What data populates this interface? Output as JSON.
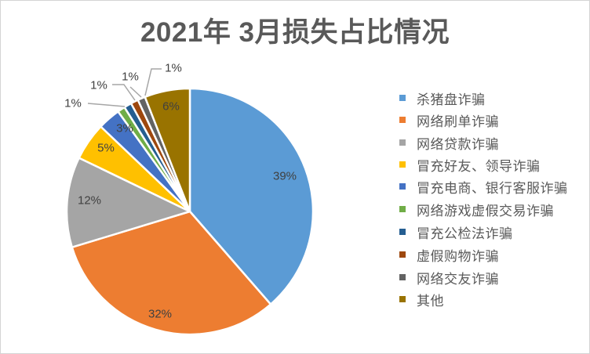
{
  "chart_data": {
    "type": "pie",
    "title": "2021年 3月损失占比情况",
    "categories": [
      "杀猪盘诈骗",
      "网络刷单诈骗",
      "网络贷款诈骗",
      "冒充好友、领导诈骗",
      "冒充电商、银行客服诈骗",
      "网络游戏虚假交易诈骗",
      "冒充公检法诈骗",
      "虚假购物诈骗",
      "网络交友诈骗",
      "其他"
    ],
    "values": [
      39,
      32,
      12,
      5,
      3,
      1,
      1,
      1,
      1,
      6
    ],
    "labels": [
      "39%",
      "32%",
      "12%",
      "5%",
      "3%",
      "1%",
      "1%",
      "1%",
      "1%",
      "6%"
    ],
    "unit": "%",
    "colors": [
      "#5B9BD5",
      "#ED7D31",
      "#A5A5A5",
      "#FFC000",
      "#4472C4",
      "#70AD47",
      "#255E91",
      "#9E480E",
      "#636363",
      "#997300"
    ],
    "start_angle": "top, clockwise",
    "legend_position": "right",
    "xlabel": "",
    "ylabel": ""
  }
}
